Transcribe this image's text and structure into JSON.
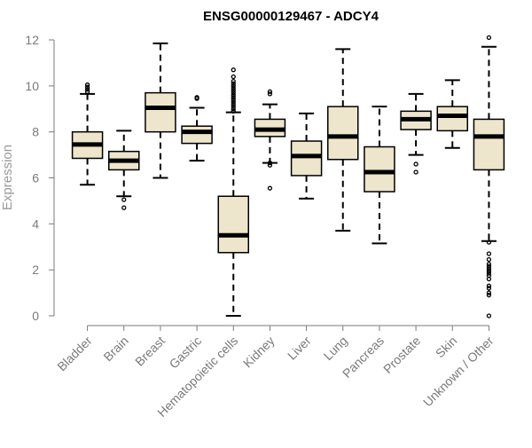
{
  "chart_data": {
    "type": "boxplot",
    "title": "ENSG00000129467 - ADCY4",
    "ylabel": "Expression",
    "ylim": [
      0,
      12
    ],
    "yticks": [
      0,
      2,
      4,
      6,
      8,
      10,
      12
    ],
    "box_fill": "#ede5cc",
    "categories": [
      "Bladder",
      "Brain",
      "Breast",
      "Gastric",
      "Hematopoietic cells",
      "Kidney",
      "Liver",
      "Lung",
      "Pancreas",
      "Prostate",
      "Skin",
      "Unknown / Other"
    ],
    "boxes": [
      {
        "category": "Bladder",
        "whisker_low": 5.7,
        "q1": 6.85,
        "median": 7.45,
        "q3": 8.0,
        "whisker_high": 9.65,
        "outliers": [
          9.75,
          9.85,
          9.95,
          10.05
        ]
      },
      {
        "category": "Brain",
        "whisker_low": 5.2,
        "q1": 6.35,
        "median": 6.75,
        "q3": 7.15,
        "whisker_high": 8.05,
        "outliers": [
          5.05,
          4.7
        ]
      },
      {
        "category": "Breast",
        "whisker_low": 6.0,
        "q1": 8.0,
        "median": 9.05,
        "q3": 9.7,
        "whisker_high": 11.85,
        "outliers": []
      },
      {
        "category": "Gastric",
        "whisker_low": 6.75,
        "q1": 7.5,
        "median": 8.0,
        "q3": 8.25,
        "whisker_high": 9.05,
        "outliers": [
          9.45,
          9.5
        ]
      },
      {
        "category": "Hematopoietic cells",
        "whisker_low": 0.0,
        "q1": 2.75,
        "median": 3.5,
        "q3": 5.2,
        "whisker_high": 8.85,
        "outliers": [
          8.9,
          9.0,
          9.1,
          9.2,
          9.3,
          9.4,
          9.5,
          9.6,
          9.7,
          9.8,
          9.9,
          10.0,
          10.1,
          10.2,
          10.4,
          10.7
        ]
      },
      {
        "category": "Kidney",
        "whisker_low": 6.65,
        "q1": 7.8,
        "median": 8.1,
        "q3": 8.55,
        "whisker_high": 9.2,
        "outliers": [
          9.65,
          9.75,
          6.65,
          6.55,
          5.55
        ]
      },
      {
        "category": "Liver",
        "whisker_low": 5.1,
        "q1": 6.1,
        "median": 6.95,
        "q3": 7.6,
        "whisker_high": 8.8,
        "outliers": []
      },
      {
        "category": "Lung",
        "whisker_low": 3.7,
        "q1": 6.8,
        "median": 7.8,
        "q3": 9.1,
        "whisker_high": 11.6,
        "outliers": []
      },
      {
        "category": "Pancreas",
        "whisker_low": 3.15,
        "q1": 5.4,
        "median": 6.25,
        "q3": 7.35,
        "whisker_high": 9.1,
        "outliers": []
      },
      {
        "category": "Prostate",
        "whisker_low": 7.0,
        "q1": 8.1,
        "median": 8.55,
        "q3": 8.9,
        "whisker_high": 9.65,
        "outliers": [
          6.6,
          6.25
        ]
      },
      {
        "category": "Skin",
        "whisker_low": 7.3,
        "q1": 8.05,
        "median": 8.7,
        "q3": 9.1,
        "whisker_high": 10.25,
        "outliers": []
      },
      {
        "category": "Unknown / Other",
        "whisker_low": 3.25,
        "q1": 6.35,
        "median": 7.8,
        "q3": 8.55,
        "whisker_high": 11.7,
        "outliers": [
          12.1,
          3.2,
          2.7,
          2.45,
          2.25,
          2.15,
          2.05,
          1.95,
          1.85,
          1.75,
          1.6,
          1.3,
          1.2,
          1.0,
          0.9,
          0.0
        ]
      }
    ]
  }
}
